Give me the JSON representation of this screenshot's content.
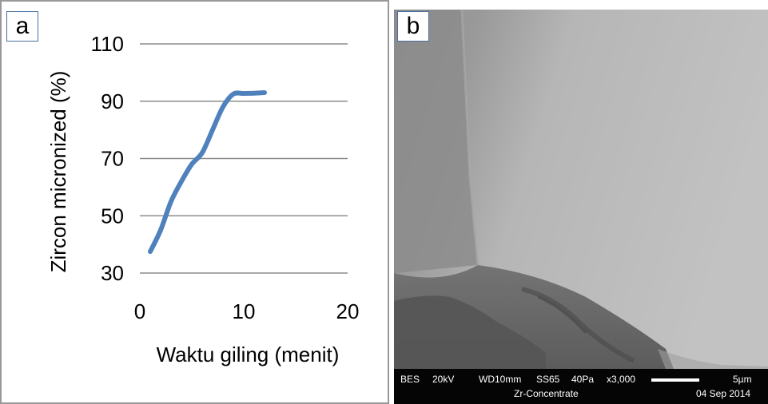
{
  "panels": {
    "a_label": "a",
    "b_label": "b"
  },
  "chart_data": {
    "type": "line",
    "title": "",
    "xlabel": "Waktu giling (menit)",
    "ylabel": "Zircon micronized (%)",
    "xlim": [
      0,
      20
    ],
    "ylim": [
      30,
      110
    ],
    "xticks": [
      0,
      10,
      20
    ],
    "yticks": [
      30,
      50,
      70,
      90,
      110
    ],
    "grid": "horizontal",
    "legend": "none",
    "series": [
      {
        "color": "#4f81bd",
        "x": [
          1,
          2,
          3,
          4,
          5,
          6,
          7,
          8,
          9,
          10,
          11,
          12
        ],
        "y": [
          37.5,
          45,
          55,
          62,
          68,
          72,
          80,
          88,
          92.5,
          92.7,
          92.8,
          93
        ]
      }
    ]
  },
  "sem": {
    "detector": "BES",
    "voltage": "20kV",
    "working_distance": "WD10mm",
    "spot_size": "SS65",
    "pressure": "40Pa",
    "magnification": "x3,000",
    "scale": "5µm",
    "sample": "Zr-Concentrate",
    "date": "04 Sep 2014"
  }
}
